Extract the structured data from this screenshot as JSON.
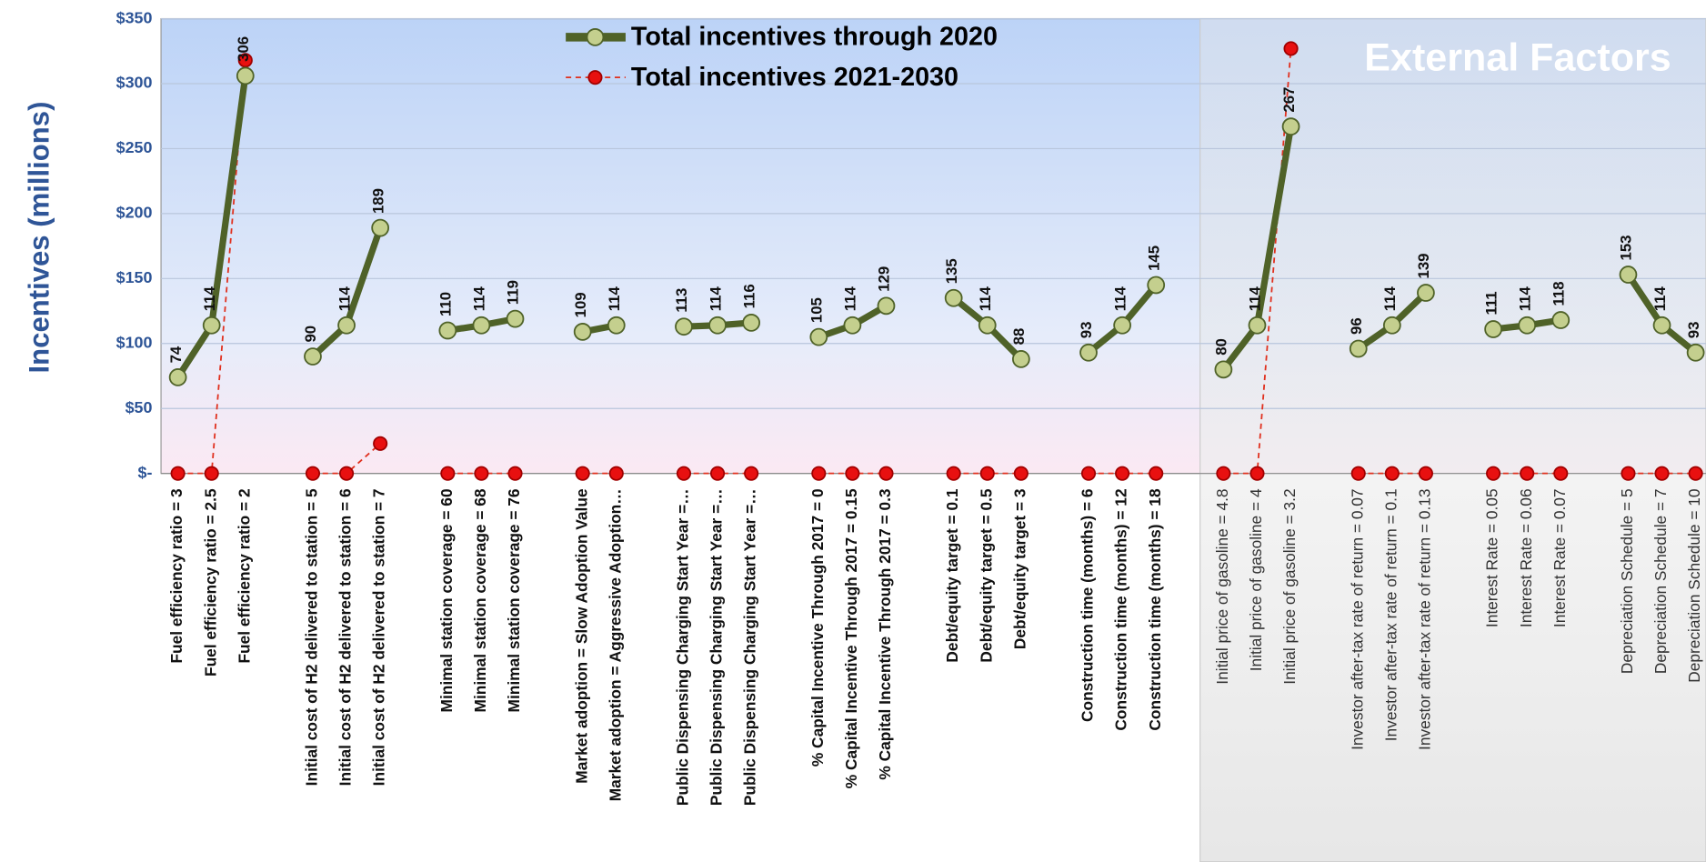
{
  "chart_data": {
    "type": "line",
    "y_label": "Incentives (millions)",
    "annotation": "External Factors",
    "legend": "top",
    "grid": true,
    "ylim": [
      0,
      350
    ],
    "yticks": [
      {
        "value": 0,
        "label": "$-"
      },
      {
        "value": 50,
        "label": "$50"
      },
      {
        "value": 100,
        "label": "$100"
      },
      {
        "value": 150,
        "label": "$150"
      },
      {
        "value": 200,
        "label": "$200"
      },
      {
        "value": 250,
        "label": "$250"
      },
      {
        "value": 300,
        "label": "$300"
      },
      {
        "value": 350,
        "label": "$350"
      }
    ],
    "categories": [
      "Fuel efficiency ratio = 3",
      "Fuel efficiency ratio = 2.5",
      "Fuel efficiency ratio = 2",
      null,
      "Initial cost of H2 delivered to station = 5",
      "Initial cost of H2 delivered to station = 6",
      "Initial cost of H2 delivered to station = 7",
      null,
      "Minimal station coverage = 60",
      "Minimal station coverage = 68",
      "Minimal station coverage = 76",
      null,
      "Market adoption = Slow Adoption Value",
      "Market adoption = Aggressive Adoption…",
      null,
      "Public Dispensing Charging Start Year =…",
      "Public Dispensing Charging Start Year =…",
      "Public Dispensing Charging Start Year =…",
      null,
      "% Capital Incentive Through 2017 = 0",
      "% Capital Incentive Through 2017 = 0.15",
      "% Capital Incentive Through 2017 = 0.3",
      null,
      "Debt/equity target = 0.1",
      "Debt/equity target = 0.5",
      "Debt/equity target = 3",
      null,
      "Construction time (months) = 6",
      "Construction time (months) = 12",
      "Construction time (months) = 18",
      null,
      "Initial price of gasoline = 4.8",
      "Initial price of gasoline = 4",
      "Initial price of gasoline = 3.2",
      null,
      "Investor after-tax rate of return = 0.07",
      "Investor after-tax rate of return = 0.1",
      "Investor after-tax rate of return = 0.13",
      null,
      "Interest Rate = 0.05",
      "Interest Rate = 0.06",
      "Interest Rate = 0.07",
      null,
      "Depreciation Schedule = 5",
      "Depreciation Schedule = 7",
      "Depreciation Schedule = 10"
    ],
    "series": [
      {
        "name": "Total incentives through 2020",
        "color": "#4f6228",
        "marker_color": "#c4cf8e",
        "values": [
          74,
          114,
          306,
          null,
          90,
          114,
          189,
          null,
          110,
          114,
          119,
          null,
          109,
          114,
          null,
          113,
          114,
          116,
          null,
          105,
          114,
          129,
          null,
          135,
          114,
          88,
          null,
          93,
          114,
          145,
          null,
          80,
          114,
          267,
          null,
          96,
          114,
          139,
          null,
          111,
          114,
          118,
          null,
          153,
          114,
          93
        ]
      },
      {
        "name": "Total incentives 2021-2030",
        "color": "#e0301e",
        "marker_color": "#e81010",
        "dashed": true,
        "values": [
          0,
          0,
          318,
          null,
          0,
          0,
          23,
          null,
          0,
          0,
          0,
          null,
          0,
          0,
          null,
          0,
          0,
          0,
          null,
          0,
          0,
          0,
          null,
          0,
          0,
          0,
          null,
          0,
          0,
          0,
          null,
          0,
          0,
          327,
          null,
          0,
          0,
          0,
          null,
          0,
          0,
          0,
          null,
          0,
          0,
          0
        ]
      }
    ]
  }
}
